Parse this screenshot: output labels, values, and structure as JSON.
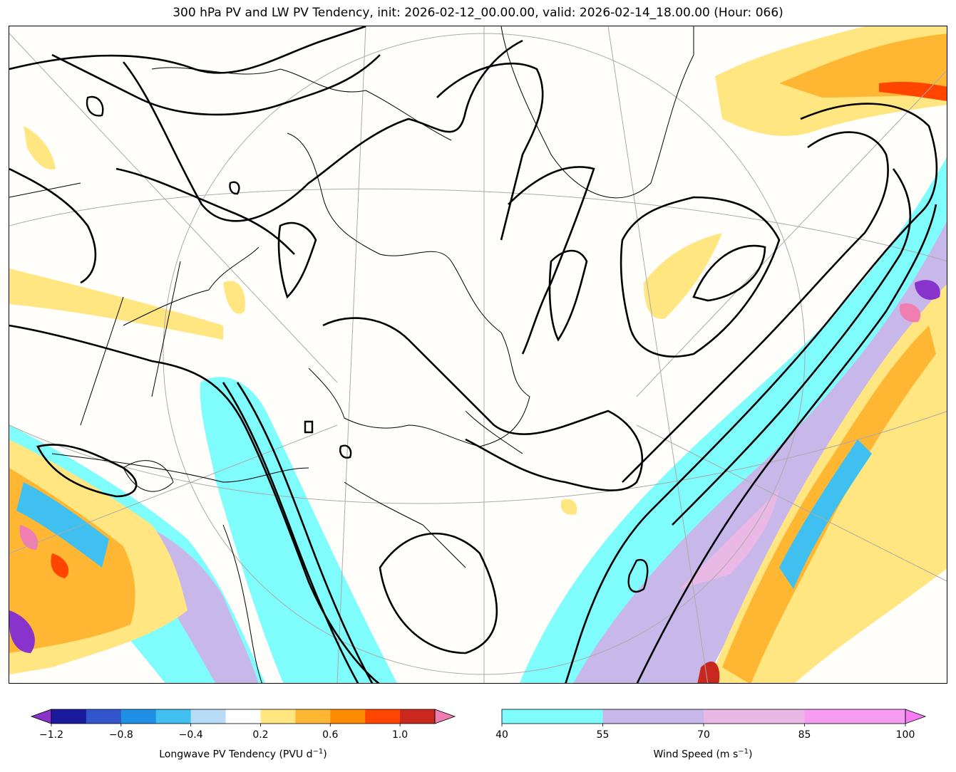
{
  "title": "300 hPa PV and LW PV Tendency, init: 2026-02-12_00.00.00, valid: 2026-02-14_18.00.00 (Hour: 066)",
  "pv_colorbar": {
    "label_main": "Longwave PV Tendency (PVU d",
    "label_exp": "−1",
    "label_end": ")",
    "ticks": [
      "−1.2",
      "−0.8",
      "−0.4",
      "0.2",
      "0.6",
      "1.0"
    ],
    "bounds": [
      -1.2,
      -1.0,
      -0.8,
      -0.6,
      -0.4,
      -0.2,
      0.2,
      0.4,
      0.6,
      0.8,
      1.0,
      1.2
    ],
    "colors": [
      "#1a1a9e",
      "#3355cc",
      "#1e90e6",
      "#40c0f0",
      "#b8dcf5",
      "#ffffff",
      "#ffe680",
      "#ffb733",
      "#ff8c00",
      "#ff4500",
      "#c8281e"
    ],
    "under_color": "#8833cc",
    "over_color": "#f07eb0"
  },
  "wind_colorbar": {
    "label_main": "Wind Speed (m s",
    "label_exp": "−1",
    "label_end": ")",
    "ticks": [
      "40",
      "55",
      "70",
      "85",
      "100"
    ],
    "colors": [
      "#7ffcfc",
      "#c8b8ea",
      "#eab8e4",
      "#f79cf3"
    ],
    "over_color": "#f77cf3"
  }
}
